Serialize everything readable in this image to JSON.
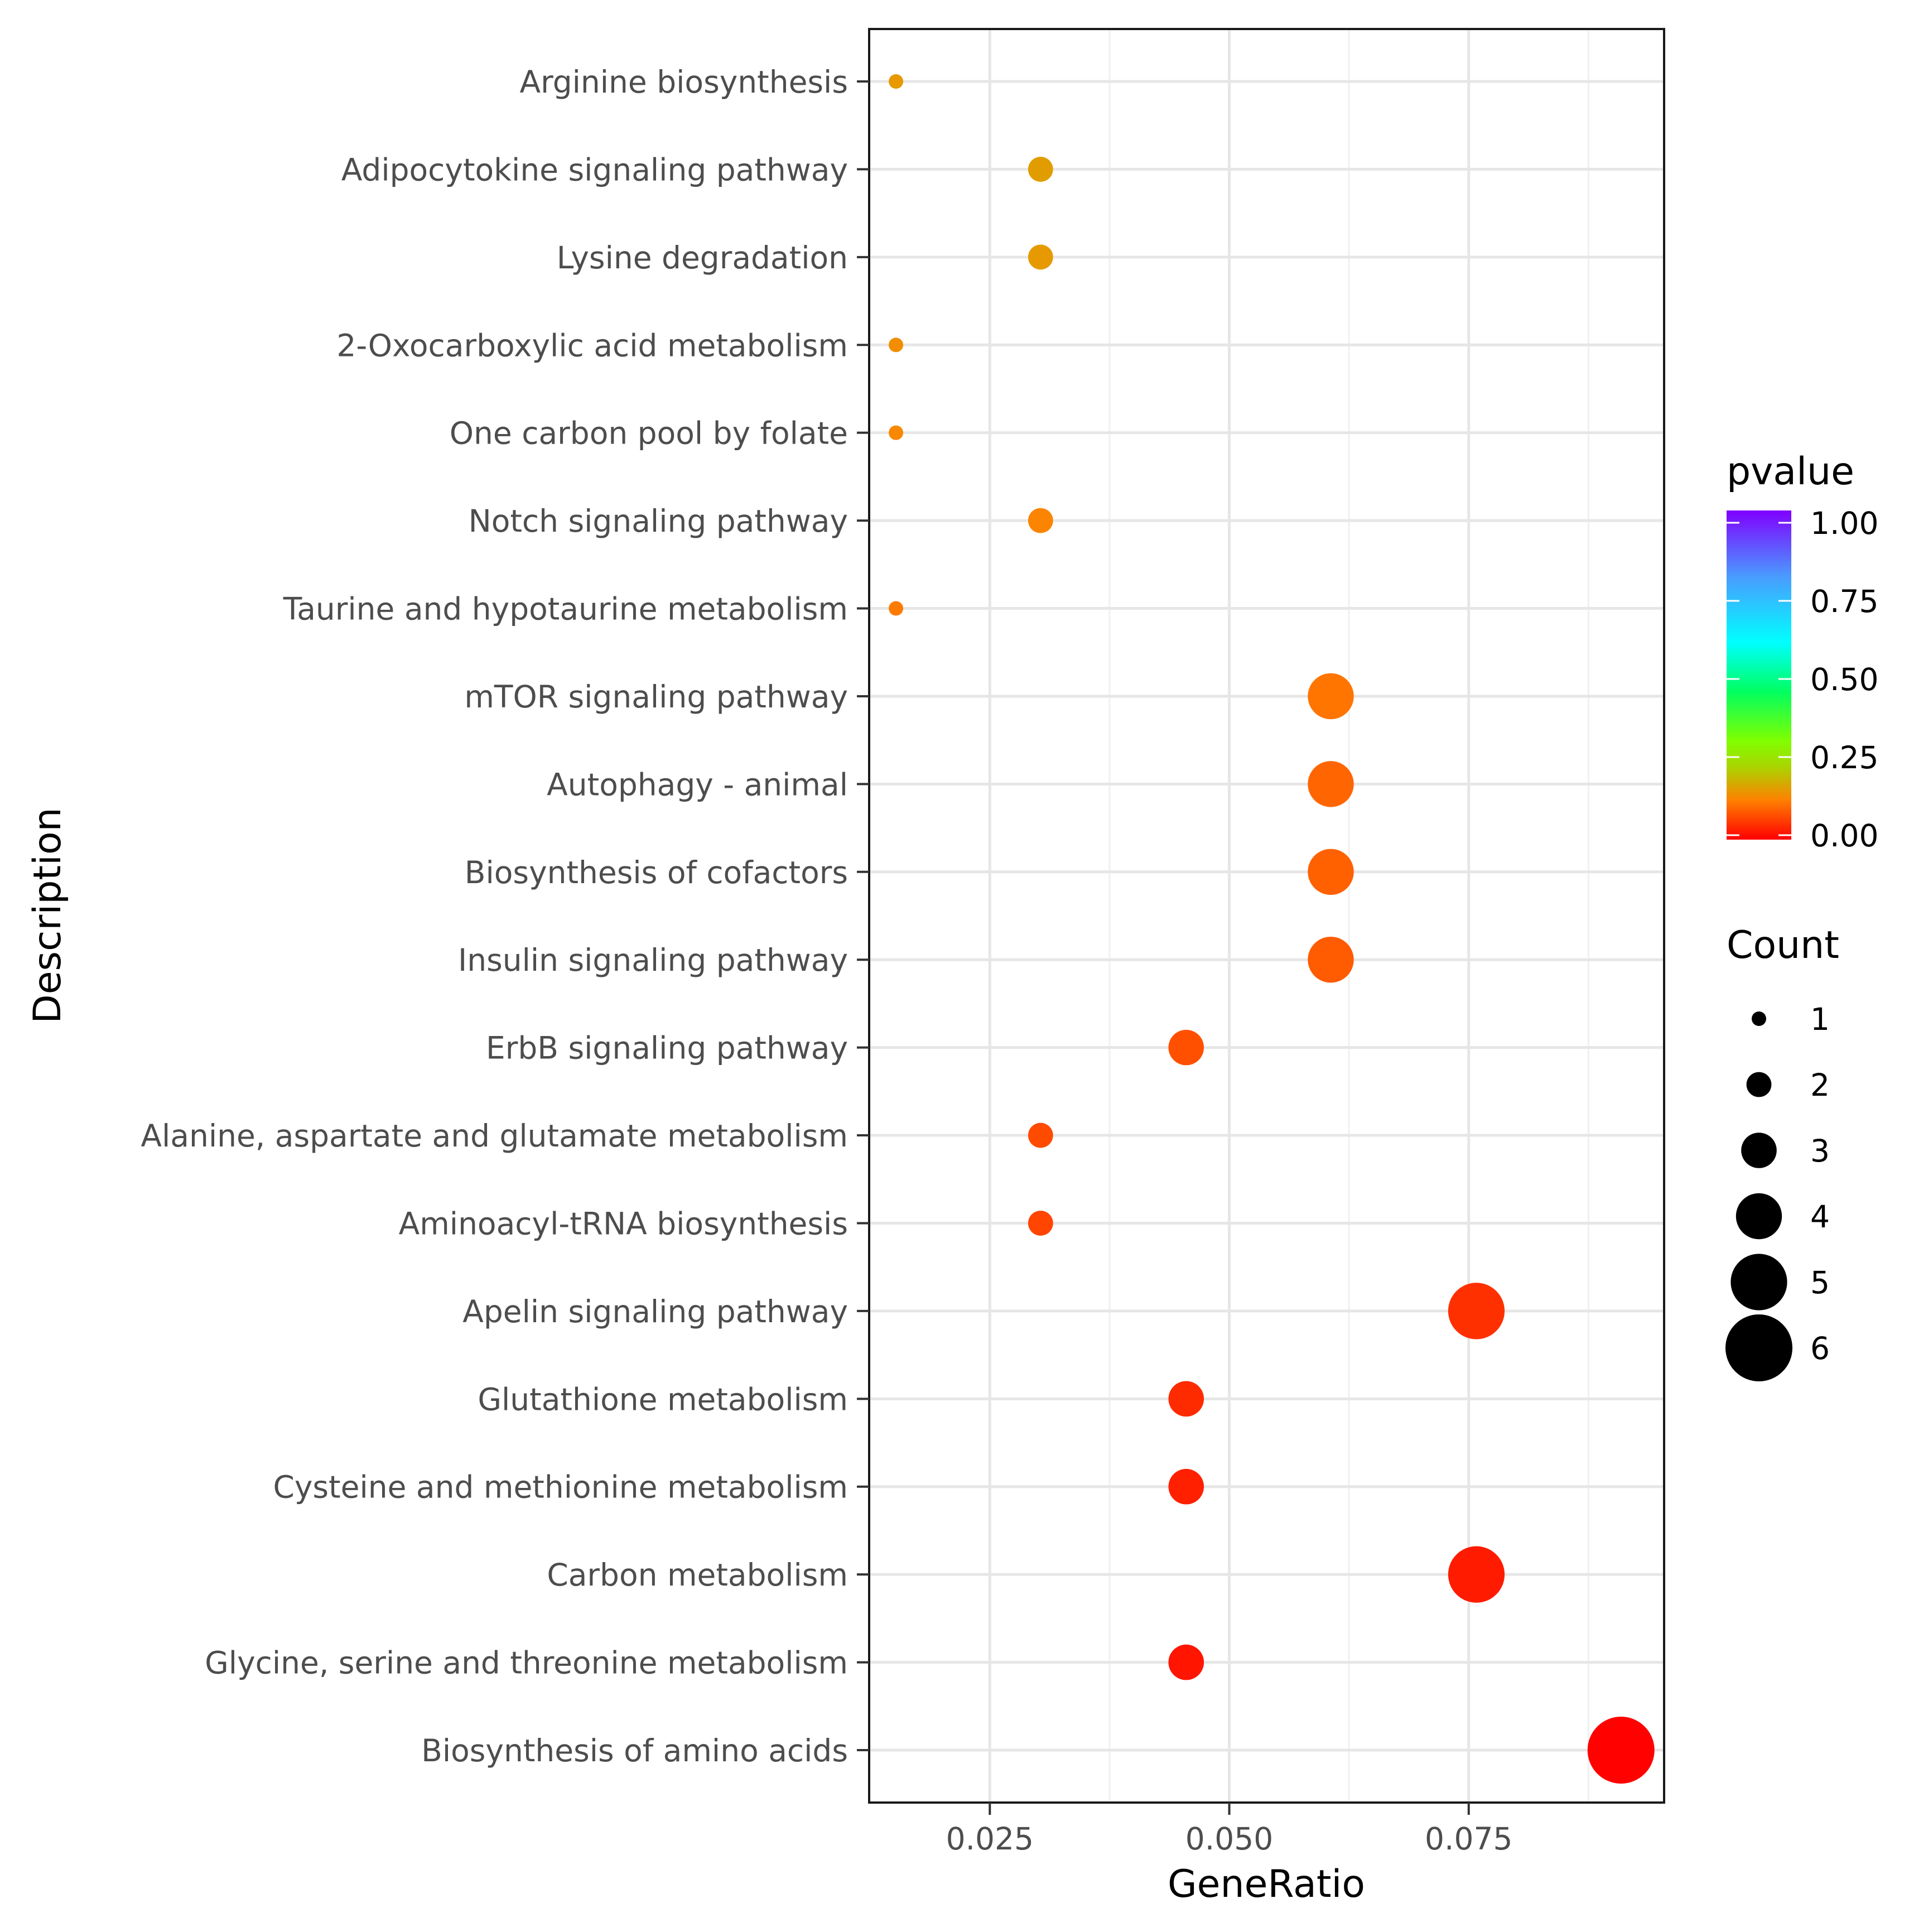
{
  "chart_data": {
    "type": "scatter",
    "title": "",
    "xlabel": "GeneRatio",
    "ylabel": "Description",
    "xlim": [
      0.0124,
      0.0954
    ],
    "x_ticks": [
      0.025,
      0.05,
      0.075
    ],
    "x_tick_labels": [
      "0.025",
      "0.050",
      "0.075"
    ],
    "grid": true,
    "points": [
      {
        "description": "Arginine biosynthesis",
        "gene_ratio": 0.0152,
        "count": 1,
        "pvalue": 0.15
      },
      {
        "description": "Adipocytokine signaling pathway",
        "gene_ratio": 0.0303,
        "count": 2,
        "pvalue": 0.155
      },
      {
        "description": "Lysine degradation",
        "gene_ratio": 0.0303,
        "count": 2,
        "pvalue": 0.15
      },
      {
        "description": "2-Oxocarboxylic acid metabolism",
        "gene_ratio": 0.0152,
        "count": 1,
        "pvalue": 0.135
      },
      {
        "description": "One carbon pool by folate",
        "gene_ratio": 0.0152,
        "count": 1,
        "pvalue": 0.13
      },
      {
        "description": "Notch signaling pathway",
        "gene_ratio": 0.0303,
        "count": 2,
        "pvalue": 0.125
      },
      {
        "description": "Taurine and hypotaurine metabolism",
        "gene_ratio": 0.0152,
        "count": 1,
        "pvalue": 0.115
      },
      {
        "description": "mTOR signaling pathway",
        "gene_ratio": 0.0606,
        "count": 4,
        "pvalue": 0.11
      },
      {
        "description": "Autophagy - animal",
        "gene_ratio": 0.0606,
        "count": 4,
        "pvalue": 0.095
      },
      {
        "description": "Biosynthesis of cofactors",
        "gene_ratio": 0.0606,
        "count": 4,
        "pvalue": 0.09
      },
      {
        "description": "Insulin signaling pathway",
        "gene_ratio": 0.0606,
        "count": 4,
        "pvalue": 0.085
      },
      {
        "description": "ErbB signaling pathway",
        "gene_ratio": 0.0455,
        "count": 3,
        "pvalue": 0.075
      },
      {
        "description": "Alanine, aspartate and glutamate metabolism",
        "gene_ratio": 0.0303,
        "count": 2,
        "pvalue": 0.07
      },
      {
        "description": "Aminoacyl-tRNA biosynthesis",
        "gene_ratio": 0.0303,
        "count": 2,
        "pvalue": 0.065
      },
      {
        "description": "Apelin signaling pathway",
        "gene_ratio": 0.0758,
        "count": 5,
        "pvalue": 0.045
      },
      {
        "description": "Glutathione metabolism",
        "gene_ratio": 0.0455,
        "count": 3,
        "pvalue": 0.04
      },
      {
        "description": "Cysteine and methionine metabolism",
        "gene_ratio": 0.0455,
        "count": 3,
        "pvalue": 0.03
      },
      {
        "description": "Carbon metabolism",
        "gene_ratio": 0.0758,
        "count": 5,
        "pvalue": 0.025
      },
      {
        "description": "Glycine, serine and threonine metabolism",
        "gene_ratio": 0.0455,
        "count": 3,
        "pvalue": 0.02
      },
      {
        "description": "Biosynthesis of amino acids",
        "gene_ratio": 0.0909,
        "count": 6,
        "pvalue": 0.002
      }
    ],
    "color_legend": {
      "title": "pvalue",
      "ticks": [
        1.0,
        0.75,
        0.5,
        0.25,
        0.0
      ],
      "tick_labels": [
        "1.00",
        "0.75",
        "0.50",
        "0.25",
        "0.00"
      ],
      "range": [
        0,
        1
      ],
      "gradient": [
        "#ff0000",
        "#ff8000",
        "#aad400",
        "#80ff00",
        "#00ff60",
        "#00ffff",
        "#4a9bff",
        "#8000ff"
      ]
    },
    "size_legend": {
      "title": "Count",
      "values": [
        1,
        2,
        3,
        4,
        5,
        6
      ],
      "labels": [
        "1",
        "2",
        "3",
        "4",
        "5",
        "6"
      ]
    }
  }
}
